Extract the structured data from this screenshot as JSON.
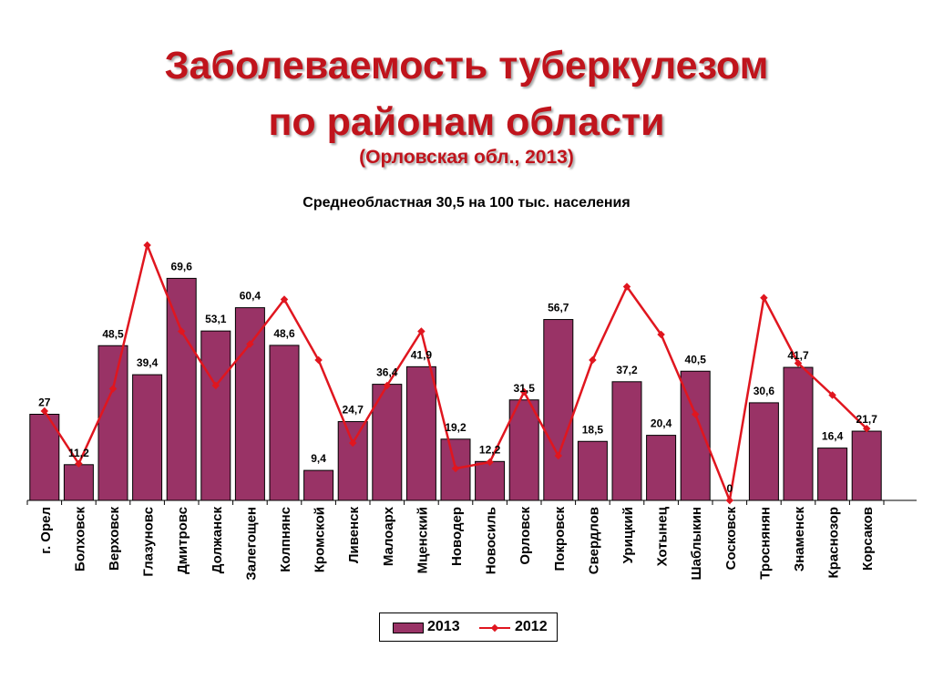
{
  "title_line1": "Заболеваемость туберкулезом",
  "title_line2": "по районам области",
  "title_line3": "(Орловская обл., 2013)",
  "colors": {
    "title": "#c0141c",
    "bar_2013": "#993366",
    "line_2012": "#e0161f"
  },
  "chart_data": {
    "type": "bar",
    "title": "Заболеваемость туберкулезом по районам области (Орловская обл., 2013)",
    "subtitle": "Среднеобластная 30,5 на 100 тыс. населения",
    "xlabel": "",
    "ylabel": "",
    "ylim": [
      0,
      80
    ],
    "grid": false,
    "legend": "bottom",
    "categories": [
      "г. Орел",
      "Болховск",
      "Верховск",
      "Глазуновс",
      "Дмитровс",
      "Должанск",
      "Залегощен",
      "Колпнянс",
      "Кромской",
      "Ливенск",
      "Малоарх",
      "Мценский",
      "Новодер",
      "Новосиль",
      "Орловск",
      "Покровск",
      "Свердлов",
      "Урицкий",
      "Хотынец",
      "Шаблыкин",
      "Сосковск",
      "Троснянян",
      "Знаменск",
      "Краснозор",
      "Корсаков"
    ],
    "series": [
      {
        "name": "2013",
        "type": "bar",
        "values": [
          27,
          11.2,
          48.5,
          39.4,
          69.6,
          53.1,
          60.4,
          48.6,
          9.4,
          24.7,
          36.4,
          41.9,
          19.2,
          12.2,
          31.5,
          56.7,
          18.5,
          37.2,
          20.4,
          40.5,
          0,
          30.6,
          41.7,
          16.4,
          21.7
        ],
        "labels": [
          "27",
          "11,2",
          "48,5",
          "39,4",
          "69,6",
          "53,1",
          "60,4",
          "48,6",
          "9,4",
          "24,7",
          "36,4",
          "41,9",
          "19,2",
          "12,2",
          "31,5",
          "56,7",
          "18,5",
          "37,2",
          "20,4",
          "40,5",
          "0",
          "30,6",
          "41,7",
          "16,4",
          "21,7"
        ]
      },
      {
        "name": "2012",
        "type": "line",
        "values": [
          28,
          11.5,
          35,
          80,
          53,
          36,
          49,
          63,
          44,
          18,
          36,
          53,
          10,
          12,
          34,
          14,
          44,
          67,
          52,
          27,
          0,
          63.5,
          43,
          33,
          22.5
        ]
      }
    ]
  }
}
